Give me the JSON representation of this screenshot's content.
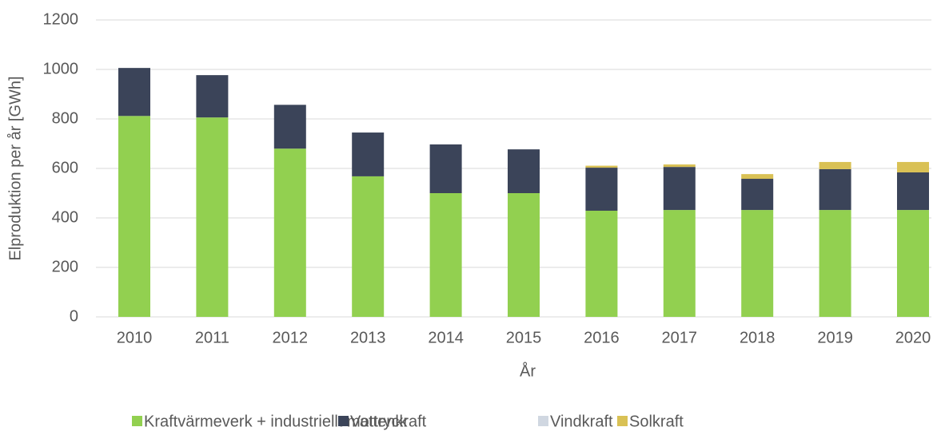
{
  "chart_data": {
    "type": "bar",
    "stacked": true,
    "x_label": "År",
    "y_label": "Elproduktion per år [GWh]",
    "categories": [
      "2010",
      "2011",
      "2012",
      "2013",
      "2014",
      "2015",
      "2016",
      "2017",
      "2018",
      "2019",
      "2020"
    ],
    "series": [
      {
        "name": "Kraftvärmeverk + industriellt mottryck",
        "color": "#92d050",
        "values": [
          812,
          806,
          680,
          568,
          500,
          500,
          429,
          432,
          432,
          432,
          432
        ]
      },
      {
        "name": "Vattenkraft",
        "color": "#3b4459",
        "values": [
          194,
          171,
          177,
          177,
          197,
          177,
          174,
          174,
          126,
          165,
          152
        ]
      },
      {
        "name": "Vindkraft",
        "color": "#d0d7e1",
        "values": [
          0,
          0,
          0,
          0,
          0,
          0,
          0,
          0,
          0,
          0,
          0
        ]
      },
      {
        "name": "Solkraft",
        "color": "#d9c155",
        "values": [
          0,
          0,
          0,
          0,
          0,
          0,
          8,
          10,
          19,
          29,
          42
        ]
      }
    ],
    "ylim": [
      0,
      1200
    ],
    "yticks": [
      0,
      200,
      400,
      600,
      800,
      1000,
      1200
    ],
    "grid": true,
    "legend": "bottom"
  }
}
